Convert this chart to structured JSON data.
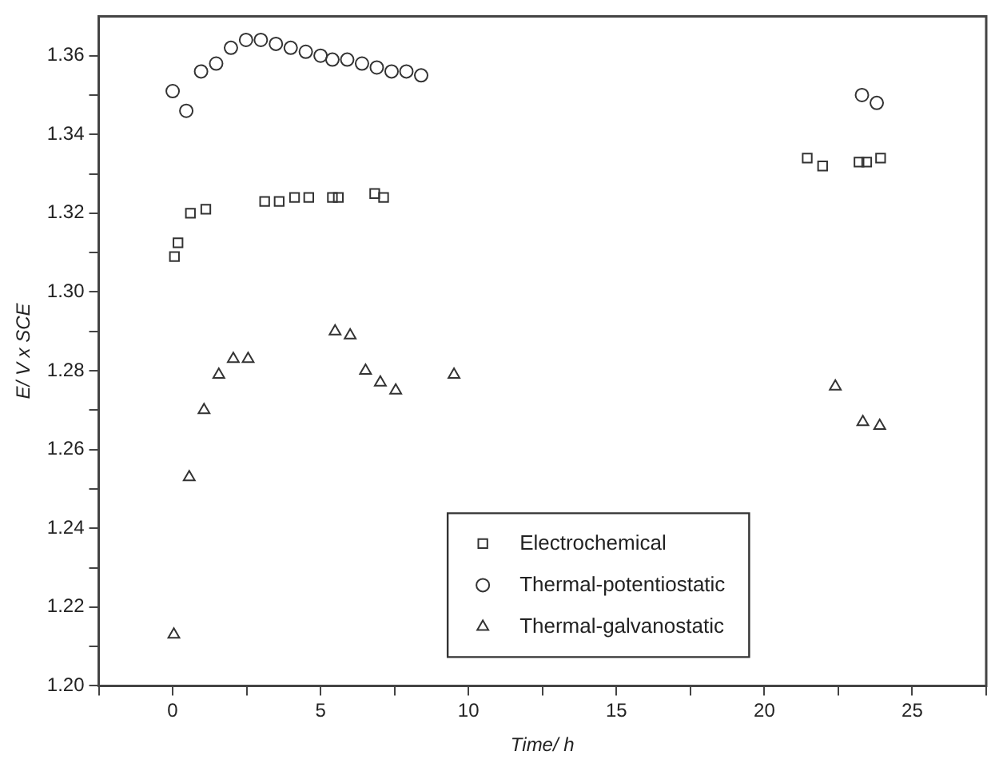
{
  "chart_data": {
    "type": "scatter",
    "xlabel": "Time/ h",
    "ylabel": "E/ V x SCE",
    "xlim": [
      -2.5,
      27.5
    ],
    "xticks": [
      {
        "value": -2.5,
        "label": null
      },
      0,
      {
        "value": 2.5,
        "label": null
      },
      5,
      {
        "value": 7.5,
        "label": null
      },
      10,
      {
        "value": 12.5,
        "label": null
      },
      15,
      {
        "value": 17.5,
        "label": null
      },
      20,
      {
        "value": 22.5,
        "label": null
      },
      25,
      {
        "value": 27.5,
        "label": null
      }
    ],
    "ylim": [
      1.2,
      1.37
    ],
    "yticks": [
      {
        "value": 1.2,
        "label": "1.20"
      },
      {
        "value": 1.21,
        "label": null
      },
      {
        "value": 1.22,
        "label": "1.22"
      },
      {
        "value": 1.23,
        "label": null
      },
      {
        "value": 1.24,
        "label": "1.24"
      },
      {
        "value": 1.25,
        "label": null
      },
      {
        "value": 1.26,
        "label": "1.26"
      },
      {
        "value": 1.27,
        "label": null
      },
      {
        "value": 1.28,
        "label": "1.28"
      },
      {
        "value": 1.29,
        "label": null
      },
      {
        "value": 1.3,
        "label": "1.30"
      },
      {
        "value": 1.31,
        "label": null
      },
      {
        "value": 1.32,
        "label": "1.32"
      },
      {
        "value": 1.33,
        "label": null
      },
      {
        "value": 1.34,
        "label": "1.34"
      },
      {
        "value": 1.35,
        "label": null
      },
      {
        "value": 1.36,
        "label": "1.36"
      }
    ],
    "grid": false,
    "legend": "bottom",
    "series": [
      {
        "name": "Electrochemical",
        "color": "#333333",
        "marker": "square",
        "x": [
          0.06,
          0.18,
          0.6,
          1.12,
          3.11,
          3.6,
          4.12,
          4.6,
          5.4,
          5.6,
          6.83,
          7.13,
          21.45,
          21.97,
          23.2,
          23.46,
          23.93
        ],
        "values": [
          1.309,
          1.3125,
          1.32,
          1.321,
          1.323,
          1.323,
          1.324,
          1.324,
          1.324,
          1.324,
          1.325,
          1.324,
          1.334,
          1.332,
          1.333,
          1.333,
          1.334
        ]
      },
      {
        "name": "Thermal-potentiostatic",
        "color": "#333333",
        "marker": "circle",
        "x": [
          0,
          0.46,
          0.96,
          1.47,
          1.97,
          2.48,
          2.98,
          3.49,
          3.99,
          4.5,
          5.0,
          5.4,
          5.9,
          6.4,
          6.9,
          7.4,
          7.9,
          8.4,
          23.3,
          23.8
        ],
        "values": [
          1.351,
          1.346,
          1.356,
          1.358,
          1.362,
          1.364,
          1.364,
          1.363,
          1.362,
          1.361,
          1.36,
          1.359,
          1.359,
          1.358,
          1.357,
          1.356,
          1.356,
          1.355,
          1.35,
          1.348
        ]
      },
      {
        "name": "Thermal-galvanostatic",
        "color": "#333333",
        "marker": "triangle",
        "x": [
          0.04,
          0.56,
          1.06,
          1.56,
          2.05,
          2.55,
          5.49,
          6.0,
          6.52,
          7.02,
          7.54,
          9.51,
          22.4,
          23.33,
          23.9
        ],
        "values": [
          1.213,
          1.253,
          1.27,
          1.279,
          1.283,
          1.283,
          1.29,
          1.289,
          1.28,
          1.277,
          1.275,
          1.279,
          1.276,
          1.267,
          1.266
        ]
      }
    ]
  }
}
